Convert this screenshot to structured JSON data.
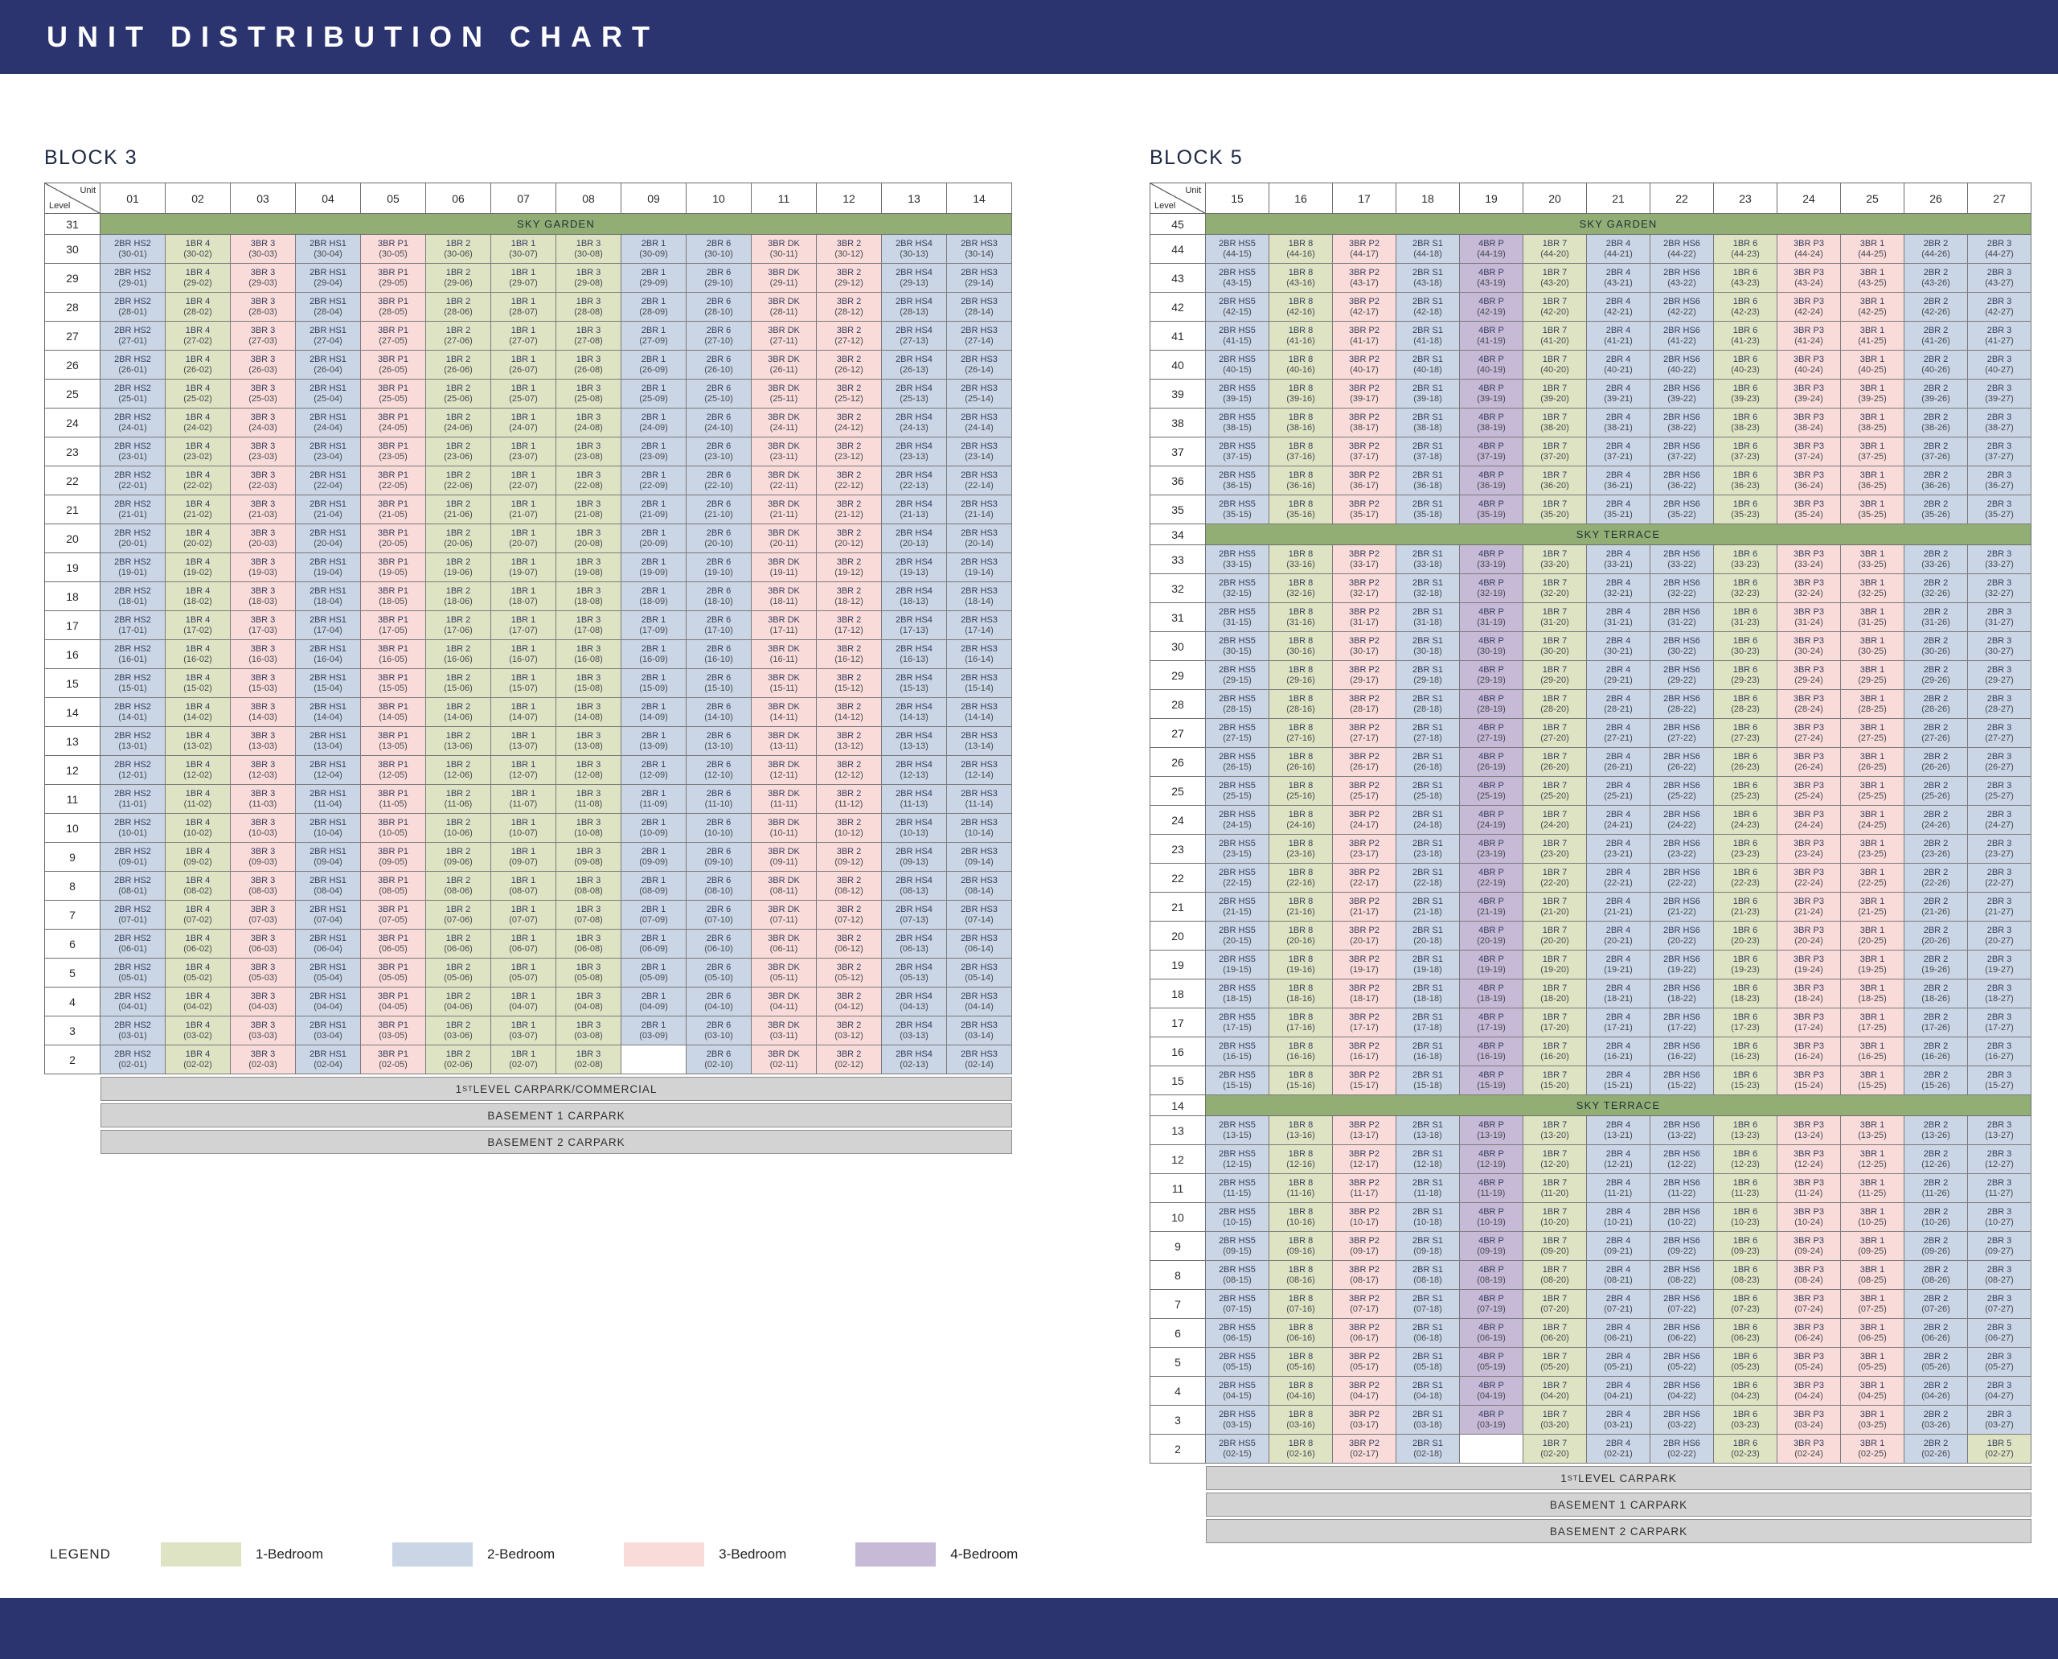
{
  "page": {
    "title": "UNIT DISTRIBUTION CHART",
    "theme_color": "#2b346f"
  },
  "palette": {
    "banner": "#93ae74",
    "carpark": "#d3d3d4",
    "empty": "#ffffff"
  },
  "legend": {
    "label": "LEGEND",
    "items": [
      {
        "key": "1br",
        "label": "1-Bedroom",
        "color": "#dee4c3"
      },
      {
        "key": "2br",
        "label": "2-Bedroom",
        "color": "#cad5e5"
      },
      {
        "key": "3br",
        "label": "3-Bedroom",
        "color": "#f9dcda"
      },
      {
        "key": "4br",
        "label": "4-Bedroom",
        "color": "#c6bad6"
      }
    ]
  },
  "chart_data": {
    "type": "table",
    "number_format": "({level}-{column})",
    "blocks": [
      {
        "name": "BLOCK 3",
        "corner": {
          "top": "Unit",
          "bottom": "Level"
        },
        "columns": [
          "01",
          "02",
          "03",
          "04",
          "05",
          "06",
          "07",
          "08",
          "09",
          "10",
          "11",
          "12",
          "13",
          "14"
        ],
        "column_units": [
          {
            "type": "2BR HS2",
            "cat": "2br"
          },
          {
            "type": "1BR 4",
            "cat": "1br"
          },
          {
            "type": "3BR 3",
            "cat": "3br"
          },
          {
            "type": "2BR HS1",
            "cat": "2br"
          },
          {
            "type": "3BR P1",
            "cat": "3br"
          },
          {
            "type": "1BR 2",
            "cat": "1br"
          },
          {
            "type": "1BR 1",
            "cat": "1br"
          },
          {
            "type": "1BR 3",
            "cat": "1br"
          },
          {
            "type": "2BR 1",
            "cat": "2br"
          },
          {
            "type": "2BR 6",
            "cat": "2br"
          },
          {
            "type": "3BR DK",
            "cat": "3br"
          },
          {
            "type": "3BR 2",
            "cat": "3br"
          },
          {
            "type": "2BR HS4",
            "cat": "2br"
          },
          {
            "type": "2BR HS3",
            "cat": "2br"
          }
        ],
        "rows": [
          {
            "kind": "banner",
            "level": "31",
            "label": "SKY GARDEN"
          },
          {
            "kind": "units",
            "from": 30,
            "to": 2
          }
        ],
        "overrides": [
          {
            "level": 2,
            "column": "09",
            "empty": true
          }
        ],
        "footer_rows": [
          "1ST LEVEL CARPARK/COMMERCIAL",
          "BASEMENT 1 CARPARK",
          "BASEMENT 2 CARPARK"
        ]
      },
      {
        "name": "BLOCK 5",
        "corner": {
          "top": "Unit",
          "bottom": "Level"
        },
        "columns": [
          "15",
          "16",
          "17",
          "18",
          "19",
          "20",
          "21",
          "22",
          "23",
          "24",
          "25",
          "26",
          "27"
        ],
        "column_units": [
          {
            "type": "2BR HS5",
            "cat": "2br"
          },
          {
            "type": "1BR 8",
            "cat": "1br"
          },
          {
            "type": "3BR P2",
            "cat": "3br"
          },
          {
            "type": "2BR S1",
            "cat": "2br"
          },
          {
            "type": "4BR P",
            "cat": "4br"
          },
          {
            "type": "1BR 7",
            "cat": "1br"
          },
          {
            "type": "2BR 4",
            "cat": "2br"
          },
          {
            "type": "2BR HS6",
            "cat": "2br"
          },
          {
            "type": "1BR 6",
            "cat": "1br"
          },
          {
            "type": "3BR P3",
            "cat": "3br"
          },
          {
            "type": "3BR 1",
            "cat": "3br"
          },
          {
            "type": "2BR 2",
            "cat": "2br"
          },
          {
            "type": "2BR 3",
            "cat": "2br"
          }
        ],
        "rows": [
          {
            "kind": "banner",
            "level": "45",
            "label": "SKY GARDEN"
          },
          {
            "kind": "units",
            "from": 44,
            "to": 35
          },
          {
            "kind": "banner",
            "level": "34",
            "label": "SKY TERRACE"
          },
          {
            "kind": "units",
            "from": 33,
            "to": 15
          },
          {
            "kind": "banner",
            "level": "14",
            "label": "SKY TERRACE"
          },
          {
            "kind": "units",
            "from": 13,
            "to": 2
          }
        ],
        "overrides": [
          {
            "level": 2,
            "column": "19",
            "empty": true
          },
          {
            "level": 2,
            "column": "27",
            "type": "1BR 5",
            "cat": "1br"
          }
        ],
        "footer_rows": [
          "1ST LEVEL CARPARK",
          "BASEMENT 1 CARPARK",
          "BASEMENT 2 CARPARK"
        ]
      }
    ]
  }
}
